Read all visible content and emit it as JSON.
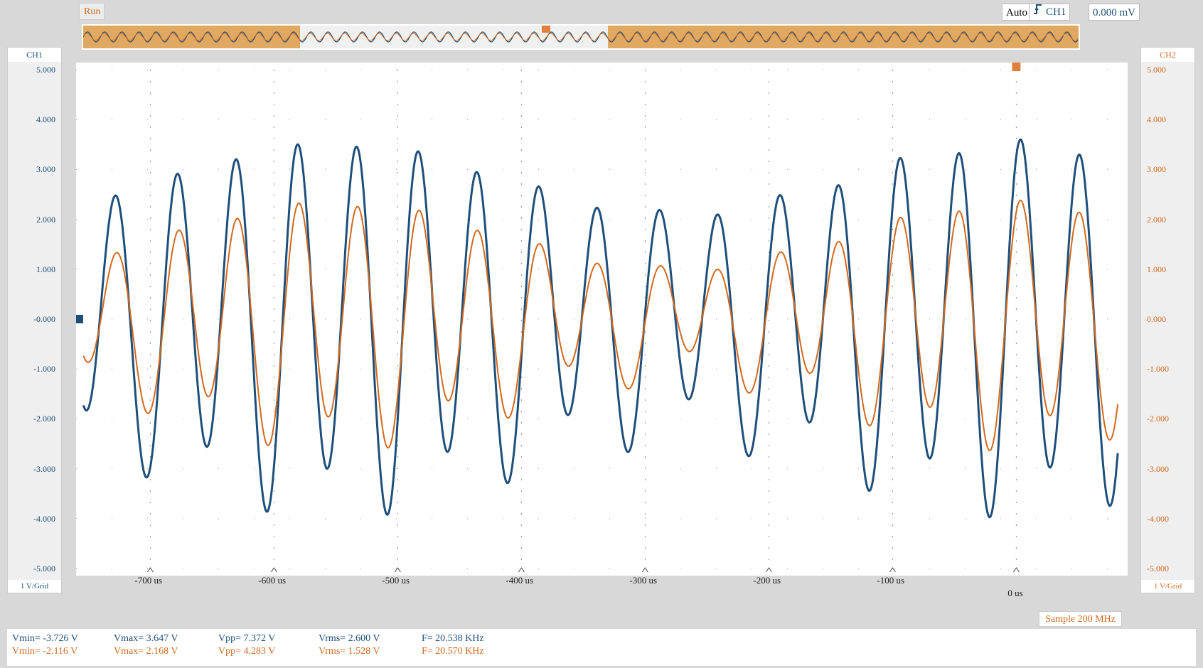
{
  "status": {
    "run_label": "Run"
  },
  "trigger": {
    "mode": "Auto",
    "channel": "CH1",
    "level": "0.000 mV"
  },
  "left_axis": {
    "title": "CH1",
    "scale": "1 V/Grid",
    "ticks": [
      "5.000",
      "4.000",
      "3.000",
      "2.000",
      "1.000",
      "-0.000",
      "-1.000",
      "-2.000",
      "-3.000",
      "-4.000",
      "-5.000"
    ]
  },
  "right_axis": {
    "title": "CH2",
    "scale": "1 V/Grid",
    "ticks": [
      "5.000",
      "4.000",
      "3.000",
      "2.000",
      "1.000",
      "0.000",
      "-1.000",
      "-2.000",
      "-3.000",
      "-4.000",
      "-5.000"
    ]
  },
  "x_axis": {
    "ticks": [
      "-700 us",
      "-600 us",
      "-500 us",
      "-400 us",
      "-300 us",
      "-200 us",
      "-100 us"
    ],
    "zero_label": "0 us"
  },
  "sample_rate": "Sample 200 MHz",
  "measurements": {
    "ch1": {
      "vmin": "Vmin= -3.726 V",
      "vmax": "Vmax= 3.647 V",
      "vpp": "Vpp= 7.372 V",
      "vrms": "Vrms= 2.600 V",
      "freq": "F= 20.538 KHz"
    },
    "ch2": {
      "vmin": "Vmin= -2.116 V",
      "vmax": "Vmax= 2.168 V",
      "vpp": "Vpp= 4.283 V",
      "vrms": "Vrms= 1.528 V",
      "freq": "F= 20.570 KHz"
    }
  },
  "colors": {
    "ch1": "#1e4f7a",
    "ch2": "#d2691e",
    "overview_fill": "#e0a860"
  },
  "chart_data": {
    "type": "line",
    "xlabel": "",
    "ylabel": "",
    "xlim": [
      -760,
      90
    ],
    "ylim": [
      -5,
      5
    ],
    "series": [
      {
        "name": "CH1",
        "amplitude": 3.8,
        "frequency_khz": 20.538
      },
      {
        "name": "CH2",
        "amplitude": 2.1,
        "frequency_khz": 20.57
      }
    ]
  }
}
